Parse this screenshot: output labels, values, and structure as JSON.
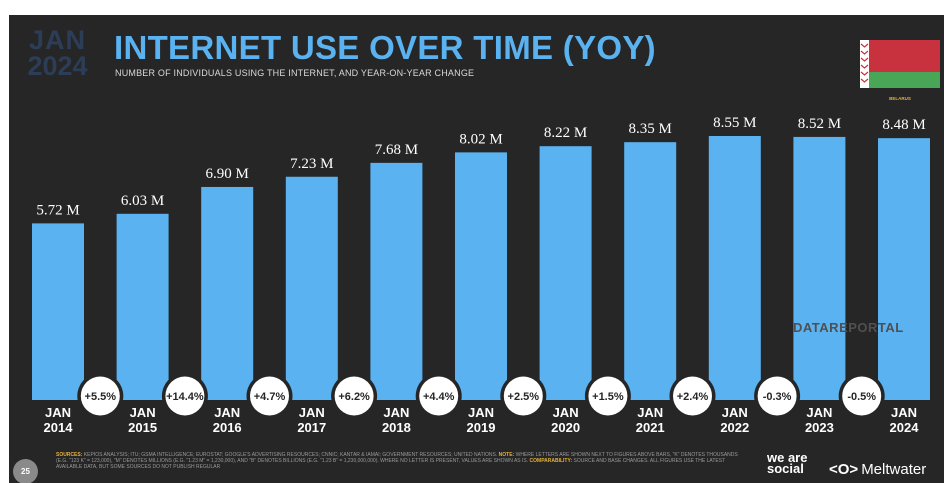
{
  "header": {
    "month": "JAN",
    "year": "2024",
    "title": "INTERNET USE OVER TIME (YOY)",
    "subtitle": "NUMBER OF INDIVIDUALS USING THE INTERNET, AND YEAR-ON-YEAR CHANGE"
  },
  "country": {
    "label": "BELARUS",
    "flag_colors": [
      "#c8313e",
      "#4aa657",
      "#ffffff"
    ]
  },
  "watermark": "DATAREPORTAL",
  "chart_data": {
    "type": "bar",
    "categories": [
      "JAN 2014",
      "JAN 2015",
      "JAN 2016",
      "JAN 2017",
      "JAN 2018",
      "JAN 2019",
      "JAN 2020",
      "JAN 2021",
      "JAN 2022",
      "JAN 2023",
      "JAN 2024"
    ],
    "category_months": [
      "JAN",
      "JAN",
      "JAN",
      "JAN",
      "JAN",
      "JAN",
      "JAN",
      "JAN",
      "JAN",
      "JAN",
      "JAN"
    ],
    "category_years": [
      "2014",
      "2015",
      "2016",
      "2017",
      "2018",
      "2019",
      "2020",
      "2021",
      "2022",
      "2023",
      "2024"
    ],
    "values": [
      5.72,
      6.03,
      6.9,
      7.23,
      7.68,
      8.02,
      8.22,
      8.35,
      8.55,
      8.52,
      8.48
    ],
    "value_labels": [
      "5.72 M",
      "6.03 M",
      "6.90 M",
      "7.23 M",
      "7.68 M",
      "8.02 M",
      "8.22 M",
      "8.35 M",
      "8.55 M",
      "8.52 M",
      "8.48 M"
    ],
    "yoy_changes": [
      "+5.5%",
      "+14.4%",
      "+4.7%",
      "+6.2%",
      "+4.4%",
      "+2.5%",
      "+1.5%",
      "+2.4%",
      "-0.3%",
      "-0.5%"
    ],
    "unit": "M",
    "bar_color": "#5ab2f0"
  },
  "footer": {
    "page_number": "25",
    "sources_key": "SOURCES:",
    "sources_text": "KEPIOS ANALYSIS; ITU; GSMA INTELLIGENCE; EUROSTAT; GOOGLE'S ADVERTISING RESOURCES; CNNIC; KANTAR & IAMAI; GOVERNMENT RESOURCES; UNITED NATIONS.",
    "note_key": "NOTE:",
    "note_text": "WHERE LETTERS ARE SHOWN NEXT TO FIGURES ABOVE BARS, \"K\" DENOTES THOUSANDS (E.G. \"123 K\" = 123,000), \"M\" DENOTES MILLIONS (E.G. \"1.23 M\" = 1,230,000), AND \"B\" DENOTES BILLIONS (E.G. \"1.23 B\" = 1,230,000,000). WHERE NO LETTER IS PRESENT, VALUES ARE SHOWN AS IS.",
    "comparability_key": "COMPARABILITY:",
    "comparability_text": "SOURCE AND BASE CHANGES. ALL FIGURES USE THE LATEST AVAILABLE DATA, BUT SOME SOURCES DO NOT PUBLISH REGULAR",
    "brand_1": "we are social",
    "brand_2_mark": "<O>",
    "brand_2": "Meltwater"
  }
}
